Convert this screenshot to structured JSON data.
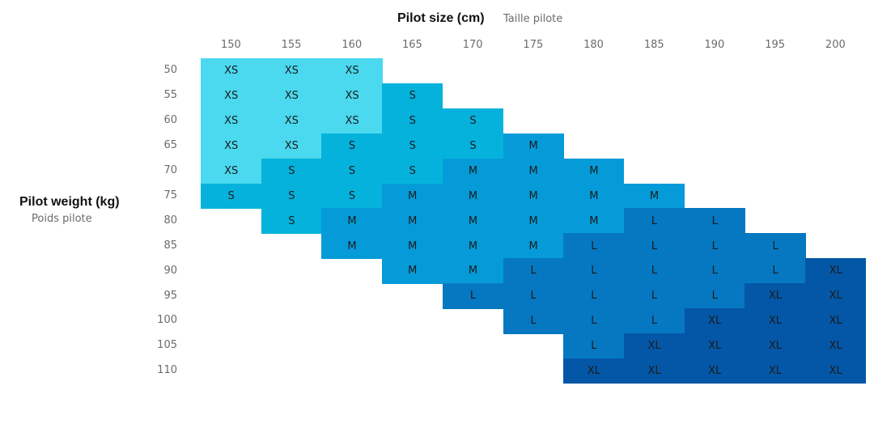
{
  "chart_data": {
    "type": "table",
    "title": "Pilot size (cm)",
    "subtitle": "Taille pilote",
    "ylabel": "Pilot weight (kg)",
    "ylabel_sub": "Poids pilote",
    "columns": [
      "150",
      "155",
      "160",
      "165",
      "170",
      "175",
      "180",
      "185",
      "190",
      "195",
      "200"
    ],
    "rows": [
      {
        "weight": "50",
        "cells": [
          "XS",
          "XS",
          "XS",
          "",
          "",
          "",
          "",
          "",
          "",
          "",
          ""
        ]
      },
      {
        "weight": "55",
        "cells": [
          "XS",
          "XS",
          "XS",
          "S",
          "",
          "",
          "",
          "",
          "",
          "",
          ""
        ]
      },
      {
        "weight": "60",
        "cells": [
          "XS",
          "XS",
          "XS",
          "S",
          "S",
          "",
          "",
          "",
          "",
          "",
          ""
        ]
      },
      {
        "weight": "65",
        "cells": [
          "XS",
          "XS",
          "S",
          "S",
          "S",
          "M",
          "",
          "",
          "",
          "",
          ""
        ]
      },
      {
        "weight": "70",
        "cells": [
          "XS",
          "S",
          "S",
          "S",
          "M",
          "M",
          "M",
          "",
          "",
          "",
          ""
        ]
      },
      {
        "weight": "75",
        "cells": [
          "S",
          "S",
          "S",
          "M",
          "M",
          "M",
          "M",
          "M",
          "",
          "",
          ""
        ]
      },
      {
        "weight": "80",
        "cells": [
          "",
          "S",
          "M",
          "M",
          "M",
          "M",
          "M",
          "L",
          "L",
          "",
          ""
        ]
      },
      {
        "weight": "85",
        "cells": [
          "",
          "",
          "M",
          "M",
          "M",
          "M",
          "L",
          "L",
          "L",
          "L",
          ""
        ]
      },
      {
        "weight": "90",
        "cells": [
          "",
          "",
          "",
          "M",
          "M",
          "L",
          "L",
          "L",
          "L",
          "L",
          "XL"
        ]
      },
      {
        "weight": "95",
        "cells": [
          "",
          "",
          "",
          "",
          "L",
          "L",
          "L",
          "L",
          "L",
          "XL",
          "XL"
        ]
      },
      {
        "weight": "100",
        "cells": [
          "",
          "",
          "",
          "",
          "",
          "L",
          "L",
          "L",
          "XL",
          "XL",
          "XL"
        ]
      },
      {
        "weight": "105",
        "cells": [
          "",
          "",
          "",
          "",
          "",
          "",
          "L",
          "XL",
          "XL",
          "XL",
          "XL"
        ]
      },
      {
        "weight": "110",
        "cells": [
          "",
          "",
          "",
          "",
          "",
          "",
          "XL",
          "XL",
          "XL",
          "XL",
          "XL"
        ]
      }
    ],
    "colors": {
      "XS": "#4ad9ef",
      "S": "#05b2dc",
      "M": "#059bd8",
      "L": "#0678c1",
      "XL": "#0457a6"
    }
  }
}
